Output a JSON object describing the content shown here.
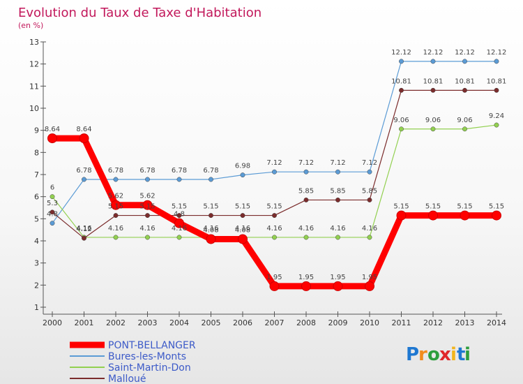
{
  "chart_data": {
    "type": "line",
    "title": "Evolution du Taux de Taxe d'Habitation",
    "subtitle": "(en %)",
    "categories": [
      "2000",
      "2001",
      "2002",
      "2003",
      "2004",
      "2005",
      "2006",
      "2007",
      "2008",
      "2009",
      "2010",
      "2011",
      "2012",
      "2013",
      "2014"
    ],
    "ylim": [
      1,
      13
    ],
    "yticks": [
      1,
      2,
      3,
      4,
      5,
      6,
      7,
      8,
      9,
      10,
      11,
      12,
      13
    ],
    "grid": false,
    "legend_position": "bottom-left",
    "series": [
      {
        "name": "PONT-BELLANGER",
        "color": "#ff0000",
        "emphasis": true,
        "values": [
          8.64,
          8.64,
          5.62,
          5.62,
          4.8,
          4.08,
          4.08,
          1.95,
          1.95,
          1.95,
          1.95,
          5.15,
          5.15,
          5.15,
          5.15
        ],
        "labels": [
          "8.64",
          "8.64",
          "5.62",
          "5.62",
          "4.8",
          "4.08",
          "4.08",
          "1.95",
          "1.95",
          "1.95",
          "1.95",
          "5.15",
          "5.15",
          "5.15",
          "5.15"
        ]
      },
      {
        "name": "Bures-les-Monts",
        "color": "#5b9bd5",
        "values": [
          4.8,
          6.78,
          6.78,
          6.78,
          6.78,
          6.78,
          6.98,
          7.12,
          7.12,
          7.12,
          7.12,
          12.12,
          12.12,
          12.12,
          12.12
        ],
        "labels": [
          "4.8",
          "6.78",
          "6.78",
          "6.78",
          "6.78",
          "6.78",
          "6.98",
          "7.12",
          "7.12",
          "7.12",
          "7.12",
          "12.12",
          "12.12",
          "12.12",
          "12.12"
        ]
      },
      {
        "name": "Saint-Martin-Don",
        "color": "#92d050",
        "values": [
          6,
          4.16,
          4.16,
          4.16,
          4.16,
          4.16,
          4.16,
          4.16,
          4.16,
          4.16,
          4.16,
          9.06,
          9.06,
          9.06,
          9.24
        ],
        "labels": [
          "6",
          "4.16",
          "4.16",
          "4.16",
          "4.16",
          "4.16",
          "4.16",
          "4.16",
          "4.16",
          "4.16",
          "4.16",
          "9.06",
          "9.06",
          "9.06",
          "9.24"
        ]
      },
      {
        "name": "Malloué",
        "color": "#7b2c2c",
        "values": [
          5.3,
          4.12,
          5.15,
          5.15,
          5.15,
          5.15,
          5.15,
          5.15,
          5.85,
          5.85,
          5.85,
          10.81,
          10.81,
          10.81,
          10.81
        ],
        "labels": [
          "5.3",
          "4.12",
          "5.15",
          "5.15",
          "5.15",
          "5.15",
          "5.15",
          "5.15",
          "5.85",
          "5.85",
          "5.85",
          "10.81",
          "10.81",
          "10.81",
          "10.81"
        ]
      }
    ]
  },
  "branding": {
    "logo_text": "Proxiti"
  }
}
